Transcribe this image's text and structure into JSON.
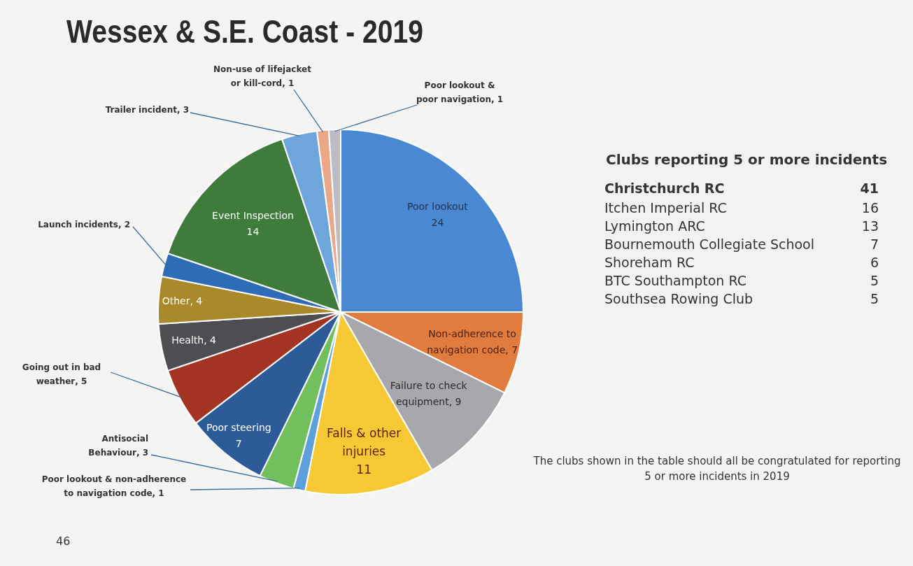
{
  "chart_data": [
    {
      "type": "pie",
      "title": "Wessex & S.E. Coast - 2019",
      "categories": [
        "Poor lookout",
        "Non-adherence to navigation code",
        "Failure to check equipment",
        "Falls & other injuries",
        "Poor lookout & non-adherence to navigation code",
        "Antisocial Behaviour",
        "Poor steering",
        "Going out in bad weather",
        "Health",
        "Other",
        "Launch incidents",
        "Event Inspection",
        "Trailer incident",
        "Non-use of lifejacket or kill-cord",
        "Poor lookout & poor navigation"
      ],
      "values": [
        24,
        7,
        9,
        11,
        1,
        3,
        7,
        5,
        4,
        4,
        2,
        14,
        3,
        1,
        1
      ],
      "colors": [
        "#4a88d2",
        "#e27c3e",
        "#a8a8ac",
        "#f6c833",
        "#5ea0dc",
        "#72bf5e",
        "#2d5b98",
        "#a33424",
        "#4d4d52",
        "#a88a2c",
        "#2f6cb8",
        "#3f7c3c",
        "#6ea6dc",
        "#eaa888",
        "#bcbcc4"
      ],
      "value_labels": [
        "24",
        ", 7",
        ", 9",
        "11",
        ", 1",
        ", 3",
        "7",
        ", 5",
        ", 4",
        ", 4",
        ", 2",
        "14",
        ", 3",
        ", 1",
        ", 1"
      ],
      "annotations": [
        "46"
      ]
    },
    {
      "type": "other",
      "title": "Clubs reporting 5 or more incidents",
      "categories": [
        "Christchurch RC",
        "Itchen Imperial RC",
        "Lymington ARC",
        "Bournemouth Collegiate School",
        "Shoreham RC",
        "BTC Southampton RC",
        "Southsea Rowing Club"
      ],
      "values": [
        41,
        16,
        13,
        7,
        6,
        5,
        5
      ],
      "data_labels": true,
      "annotations": [
        "The clubs shown in the table should all be congratulated for reporting 5 or more incidents in 2019"
      ]
    }
  ]
}
